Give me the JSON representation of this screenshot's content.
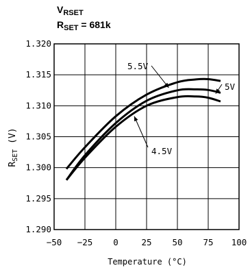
{
  "chart_data": {
    "type": "line",
    "title": {
      "line1": {
        "main": "V",
        "sub": "RSET"
      },
      "line2": {
        "main": "R",
        "sub": "SET",
        "suffix": " = 681k"
      }
    },
    "xlabel": "Temperature (°C)",
    "ylabel": {
      "main": "R",
      "sub": "SET",
      "suffix": " (V)"
    },
    "xlim": [
      -50,
      100
    ],
    "ylim": [
      1.29,
      1.32
    ],
    "xticks": [
      "−50",
      "−25",
      "0",
      "25",
      "50",
      "75",
      "100"
    ],
    "xtick_values": [
      -50,
      -25,
      0,
      25,
      50,
      75,
      100
    ],
    "yticks": [
      "1.290",
      "1.295",
      "1.300",
      "1.305",
      "1.310",
      "1.315",
      "1.320"
    ],
    "ytick_values": [
      1.29,
      1.295,
      1.3,
      1.305,
      1.31,
      1.315,
      1.32
    ],
    "grid": true,
    "series": [
      {
        "name": "5.5V",
        "x": [
          -40,
          -25,
          0,
          25,
          50,
          65,
          75,
          85
        ],
        "y": [
          1.2998,
          1.3033,
          1.3083,
          1.3118,
          1.3138,
          1.31425,
          1.3143,
          1.314
        ]
      },
      {
        "name": "5V",
        "x": [
          -40,
          -25,
          0,
          25,
          50,
          65,
          75,
          85
        ],
        "y": [
          1.298,
          1.302,
          1.3072,
          1.3108,
          1.3125,
          1.31265,
          1.31255,
          1.3121
        ]
      },
      {
        "name": "4.5V",
        "x": [
          -40,
          -25,
          0,
          25,
          50,
          65,
          75,
          85
        ],
        "y": [
          1.298,
          1.3016,
          1.3066,
          1.31,
          1.3114,
          1.3115,
          1.3113,
          1.3107
        ]
      }
    ],
    "annotations": [
      {
        "text": "5.5V",
        "series": "5.5V"
      },
      {
        "text": "5V",
        "series": "5V"
      },
      {
        "text": "4.5V",
        "series": "4.5V"
      }
    ]
  }
}
